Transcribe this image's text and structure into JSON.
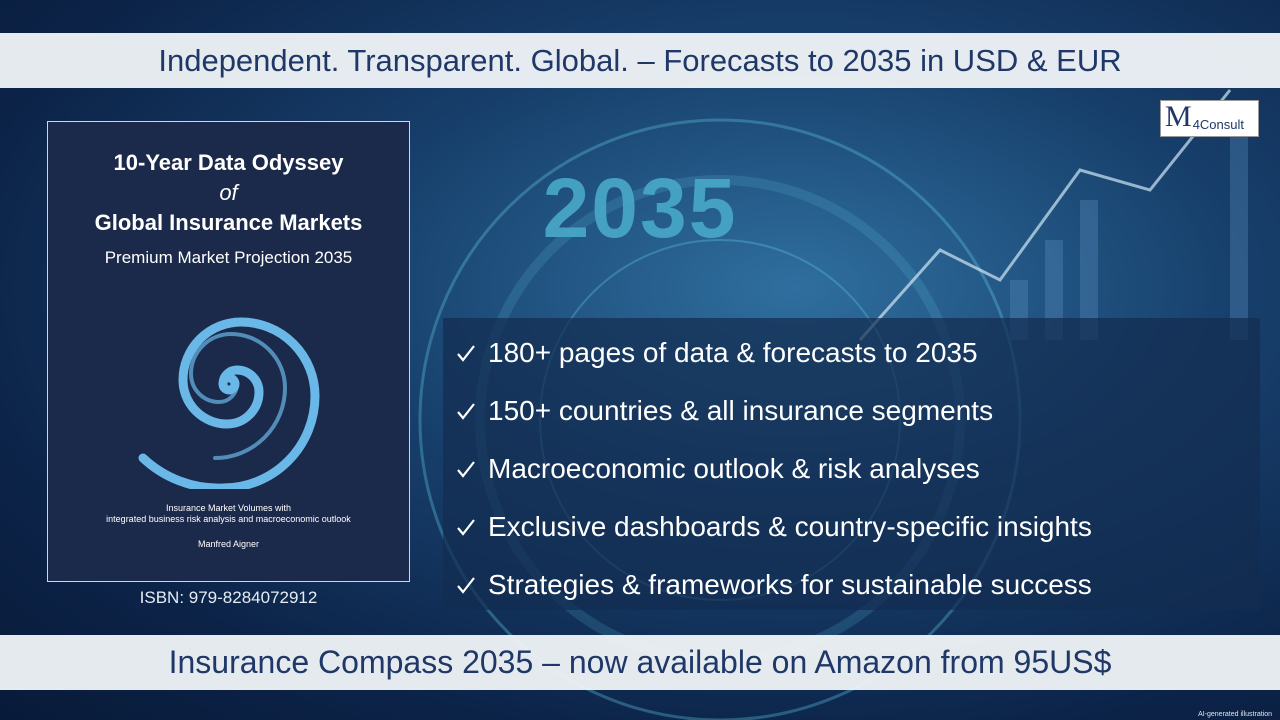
{
  "banner_top": {
    "text": "Independent. Transparent. Global. – Forecasts to 2035 in USD & EUR"
  },
  "logo": {
    "mark": "M",
    "text": "4Consult"
  },
  "background": {
    "year": "2035"
  },
  "book": {
    "title_lines": [
      "10-Year Data Odyssey",
      "of",
      "Global Insurance Markets"
    ],
    "subtitle": "Premium Market Projection 2035",
    "description_lines": [
      "Insurance Market Volumes with",
      "integrated business risk analysis and macroeconomic outlook"
    ],
    "author": "Manfred Aigner",
    "isbn": "ISBN:  979-8284072912"
  },
  "features": [
    "180+ pages of data & forecasts to 2035",
    "150+ countries & all insurance segments",
    "Macroeconomic outlook & risk analyses",
    "Exclusive dashboards & country-specific insights",
    "Strategies & frameworks for sustainable success"
  ],
  "banner_bottom": {
    "text": "Insurance Compass 2035 – now available on Amazon from 95US$"
  },
  "footnote": "AI-generated illustration"
}
